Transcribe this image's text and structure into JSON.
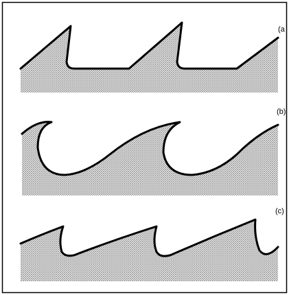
{
  "panels": [
    {
      "label": "(a"
    },
    {
      "label": "(b)"
    },
    {
      "label": "(c)"
    }
  ]
}
